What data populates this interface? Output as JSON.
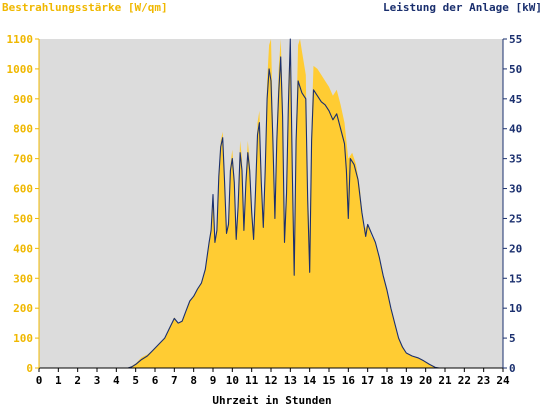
{
  "colors": {
    "irradiance": "#ffcc33",
    "power": "#1a2f6e",
    "left_axis_text": "#f0b800",
    "right_axis_text": "#1a2f6e",
    "plot_background": "#dcdcdc",
    "axis_text": "#000000"
  },
  "chart_data": {
    "type": "area",
    "title": "",
    "xlabel": "Uhrzeit in Stunden",
    "ylabel_left": "Bestrahlungsstärke [W/qm]",
    "ylabel_right": "Leistung der Anlage [kW]",
    "xlim": [
      0,
      24
    ],
    "ylim_left": [
      0,
      1100
    ],
    "ylim_right": [
      0,
      55
    ],
    "xticks": [
      "0",
      "1",
      "2",
      "3",
      "4",
      "5",
      "6",
      "7",
      "8",
      "9",
      "10",
      "11",
      "12",
      "13",
      "14",
      "15",
      "16",
      "17",
      "18",
      "19",
      "20",
      "21",
      "22",
      "23",
      "24"
    ],
    "yticks_left": [
      "0",
      "100",
      "200",
      "300",
      "400",
      "500",
      "600",
      "700",
      "800",
      "900",
      "1000",
      "1100"
    ],
    "yticks_right": [
      "0",
      "5",
      "10",
      "15",
      "20",
      "25",
      "30",
      "35",
      "40",
      "45",
      "50",
      "55"
    ],
    "grid": false,
    "series": [
      {
        "name": "Bestrahlungsstärke [W/qm]",
        "kind": "area",
        "axis": "left",
        "points": [
          [
            0,
            0
          ],
          [
            4.5,
            0
          ],
          [
            4.7,
            3
          ],
          [
            5.0,
            15
          ],
          [
            5.3,
            35
          ],
          [
            5.6,
            45
          ],
          [
            5.9,
            60
          ],
          [
            6.2,
            80
          ],
          [
            6.5,
            100
          ],
          [
            6.8,
            140
          ],
          [
            7.0,
            170
          ],
          [
            7.2,
            150
          ],
          [
            7.4,
            160
          ],
          [
            7.6,
            185
          ],
          [
            7.8,
            225
          ],
          [
            8.0,
            240
          ],
          [
            8.2,
            265
          ],
          [
            8.4,
            285
          ],
          [
            8.6,
            330
          ],
          [
            8.8,
            420
          ],
          [
            8.9,
            470
          ],
          [
            9.0,
            560
          ],
          [
            9.1,
            420
          ],
          [
            9.2,
            470
          ],
          [
            9.3,
            650
          ],
          [
            9.4,
            760
          ],
          [
            9.5,
            790
          ],
          [
            9.6,
            640
          ],
          [
            9.7,
            460
          ],
          [
            9.8,
            500
          ],
          [
            9.9,
            680
          ],
          [
            10.0,
            730
          ],
          [
            10.1,
            640
          ],
          [
            10.2,
            440
          ],
          [
            10.3,
            560
          ],
          [
            10.4,
            760
          ],
          [
            10.5,
            700
          ],
          [
            10.6,
            480
          ],
          [
            10.7,
            640
          ],
          [
            10.8,
            760
          ],
          [
            10.9,
            690
          ],
          [
            11.0,
            540
          ],
          [
            11.1,
            450
          ],
          [
            11.2,
            620
          ],
          [
            11.3,
            820
          ],
          [
            11.4,
            860
          ],
          [
            11.5,
            640
          ],
          [
            11.6,
            490
          ],
          [
            11.7,
            700
          ],
          [
            11.8,
            960
          ],
          [
            11.9,
            1080
          ],
          [
            12.0,
            1100
          ],
          [
            12.1,
            820
          ],
          [
            12.2,
            520
          ],
          [
            12.3,
            800
          ],
          [
            12.4,
            1000
          ],
          [
            12.5,
            1100
          ],
          [
            12.6,
            900
          ],
          [
            12.7,
            480
          ],
          [
            12.8,
            620
          ],
          [
            12.9,
            960
          ],
          [
            13.0,
            1100
          ],
          [
            13.1,
            700
          ],
          [
            13.2,
            420
          ],
          [
            13.3,
            800
          ],
          [
            13.4,
            1080
          ],
          [
            13.5,
            1100
          ],
          [
            13.6,
            1060
          ],
          [
            13.8,
            980
          ],
          [
            13.9,
            600
          ],
          [
            14.0,
            440
          ],
          [
            14.1,
            820
          ],
          [
            14.2,
            1010
          ],
          [
            14.4,
            1000
          ],
          [
            14.6,
            980
          ],
          [
            14.8,
            960
          ],
          [
            15.0,
            940
          ],
          [
            15.2,
            910
          ],
          [
            15.4,
            930
          ],
          [
            15.6,
            880
          ],
          [
            15.8,
            820
          ],
          [
            15.9,
            760
          ],
          [
            16.0,
            700
          ],
          [
            16.2,
            720
          ],
          [
            16.4,
            680
          ],
          [
            16.6,
            600
          ],
          [
            16.8,
            460
          ],
          [
            17.0,
            480
          ],
          [
            17.2,
            440
          ],
          [
            17.4,
            420
          ],
          [
            17.6,
            370
          ],
          [
            17.8,
            310
          ],
          [
            18.0,
            260
          ],
          [
            18.2,
            200
          ],
          [
            18.4,
            150
          ],
          [
            18.6,
            100
          ],
          [
            18.8,
            70
          ],
          [
            19.0,
            50
          ],
          [
            19.3,
            40
          ],
          [
            19.6,
            35
          ],
          [
            19.9,
            25
          ],
          [
            20.2,
            12
          ],
          [
            20.5,
            3
          ],
          [
            20.7,
            0
          ],
          [
            24,
            0
          ]
        ]
      },
      {
        "name": "Leistung der Anlage [kW]",
        "kind": "line",
        "axis": "right",
        "points": [
          [
            0,
            0
          ],
          [
            4.6,
            0
          ],
          [
            4.8,
            0.2
          ],
          [
            5.0,
            0.6
          ],
          [
            5.3,
            1.4
          ],
          [
            5.6,
            2.0
          ],
          [
            5.9,
            3.0
          ],
          [
            6.2,
            4.0
          ],
          [
            6.5,
            5.0
          ],
          [
            6.8,
            7.0
          ],
          [
            7.0,
            8.3
          ],
          [
            7.2,
            7.5
          ],
          [
            7.4,
            7.8
          ],
          [
            7.6,
            9.5
          ],
          [
            7.8,
            11.2
          ],
          [
            8.0,
            12.0
          ],
          [
            8.2,
            13.2
          ],
          [
            8.4,
            14.2
          ],
          [
            8.6,
            16.5
          ],
          [
            8.8,
            21
          ],
          [
            8.9,
            23
          ],
          [
            9.0,
            29
          ],
          [
            9.1,
            21
          ],
          [
            9.2,
            23
          ],
          [
            9.3,
            32
          ],
          [
            9.4,
            37
          ],
          [
            9.5,
            38.5
          ],
          [
            9.6,
            31
          ],
          [
            9.7,
            22.5
          ],
          [
            9.8,
            24
          ],
          [
            9.9,
            33
          ],
          [
            10.0,
            35
          ],
          [
            10.1,
            31
          ],
          [
            10.2,
            21.5
          ],
          [
            10.3,
            27
          ],
          [
            10.4,
            36
          ],
          [
            10.5,
            33
          ],
          [
            10.6,
            23
          ],
          [
            10.7,
            31
          ],
          [
            10.8,
            36
          ],
          [
            10.9,
            33
          ],
          [
            11.0,
            26
          ],
          [
            11.1,
            21.5
          ],
          [
            11.2,
            29.5
          ],
          [
            11.3,
            39
          ],
          [
            11.4,
            41
          ],
          [
            11.5,
            31
          ],
          [
            11.6,
            23.5
          ],
          [
            11.7,
            33
          ],
          [
            11.8,
            45
          ],
          [
            11.9,
            50
          ],
          [
            12.0,
            48
          ],
          [
            12.1,
            38
          ],
          [
            12.2,
            25
          ],
          [
            12.3,
            38
          ],
          [
            12.4,
            46
          ],
          [
            12.5,
            52
          ],
          [
            12.6,
            42
          ],
          [
            12.7,
            21
          ],
          [
            12.8,
            29
          ],
          [
            12.9,
            44
          ],
          [
            13.0,
            55
          ],
          [
            13.1,
            33
          ],
          [
            13.2,
            15.5
          ],
          [
            13.3,
            38
          ],
          [
            13.4,
            48
          ],
          [
            13.5,
            47
          ],
          [
            13.6,
            46
          ],
          [
            13.8,
            45
          ],
          [
            13.9,
            28
          ],
          [
            14.0,
            16
          ],
          [
            14.1,
            38
          ],
          [
            14.2,
            46.5
          ],
          [
            14.4,
            45.5
          ],
          [
            14.6,
            44.5
          ],
          [
            14.8,
            44
          ],
          [
            15.0,
            43
          ],
          [
            15.2,
            41.5
          ],
          [
            15.4,
            42.5
          ],
          [
            15.6,
            40
          ],
          [
            15.8,
            37.5
          ],
          [
            15.9,
            33
          ],
          [
            16.0,
            25
          ],
          [
            16.1,
            35
          ],
          [
            16.3,
            34
          ],
          [
            16.5,
            31.5
          ],
          [
            16.7,
            26
          ],
          [
            16.9,
            22
          ],
          [
            17.0,
            24
          ],
          [
            17.2,
            22.5
          ],
          [
            17.4,
            21
          ],
          [
            17.6,
            18.5
          ],
          [
            17.8,
            15.5
          ],
          [
            18.0,
            13
          ],
          [
            18.2,
            10
          ],
          [
            18.4,
            7.5
          ],
          [
            18.6,
            5
          ],
          [
            18.8,
            3.5
          ],
          [
            19.0,
            2.5
          ],
          [
            19.3,
            2.0
          ],
          [
            19.6,
            1.7
          ],
          [
            19.9,
            1.2
          ],
          [
            20.2,
            0.6
          ],
          [
            20.5,
            0.1
          ],
          [
            20.7,
            0
          ],
          [
            24,
            0
          ]
        ]
      }
    ]
  }
}
